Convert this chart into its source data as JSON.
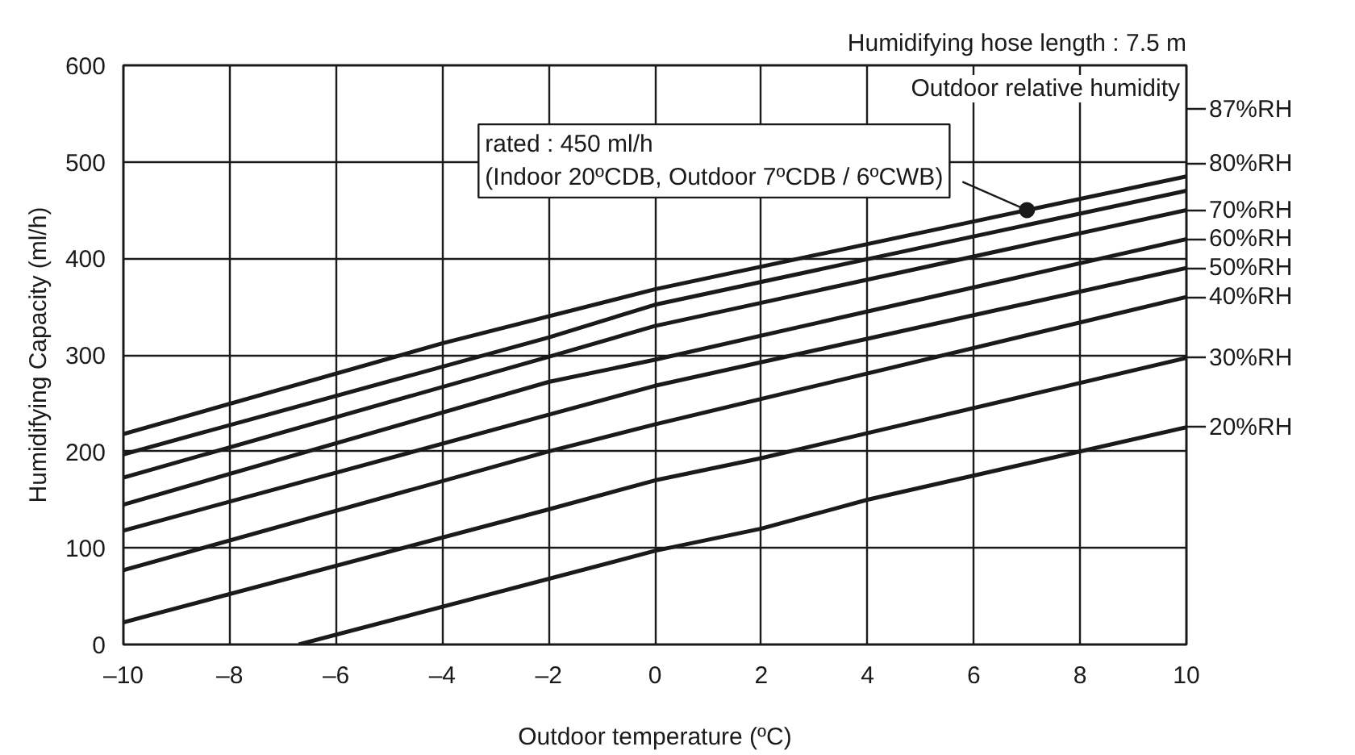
{
  "chart_data": {
    "type": "line",
    "title": "Humidifying hose length : 7.5 m",
    "xlabel": "Outdoor temperature (ºC)",
    "ylabel": "Humidifying Capacity (ml/h)",
    "legend_title": "Outdoor relative humidity",
    "xlim": [
      -10,
      10
    ],
    "ylim": [
      0,
      600
    ],
    "xticks": [
      {
        "value": -10,
        "label": "–10"
      },
      {
        "value": -8,
        "label": "–8"
      },
      {
        "value": -6,
        "label": "–6"
      },
      {
        "value": -4,
        "label": "–4"
      },
      {
        "value": -2,
        "label": "–2"
      },
      0,
      2,
      4,
      6,
      8,
      10
    ],
    "yticks": [
      0,
      100,
      200,
      300,
      400,
      500,
      600
    ],
    "grid": true,
    "legend": "right",
    "line_style": "solid",
    "series": [
      {
        "name": "87%RH",
        "color": "#1a1a1a",
        "x": [
          -10,
          -4,
          0,
          7,
          10
        ],
        "values": [
          218,
          312,
          368,
          450,
          485
        ]
      },
      {
        "name": "80%RH",
        "color": "#1a1a1a",
        "x": [
          -10,
          -2,
          0,
          10
        ],
        "values": [
          197,
          318,
          352,
          470
        ]
      },
      {
        "name": "70%RH",
        "color": "#1a1a1a",
        "x": [
          -10,
          -2,
          0,
          10
        ],
        "values": [
          173,
          298,
          330,
          450
        ]
      },
      {
        "name": "60%RH",
        "color": "#1a1a1a",
        "x": [
          -10,
          -2,
          0,
          10
        ],
        "values": [
          145,
          272,
          295,
          420
        ]
      },
      {
        "name": "50%RH",
        "color": "#1a1a1a",
        "x": [
          -10,
          -2,
          0,
          10
        ],
        "values": [
          118,
          238,
          268,
          390
        ]
      },
      {
        "name": "40%RH",
        "color": "#1a1a1a",
        "x": [
          -10,
          -2,
          0,
          10
        ],
        "values": [
          77,
          200,
          228,
          360
        ]
      },
      {
        "name": "30%RH",
        "color": "#1a1a1a",
        "x": [
          -10,
          -2,
          0,
          2,
          10
        ],
        "values": [
          23,
          140,
          170,
          193,
          297
        ]
      },
      {
        "name": "20%RH",
        "color": "#1a1a1a",
        "x": [
          -6.7,
          0,
          2,
          4,
          10
        ],
        "values": [
          0,
          97,
          120,
          150,
          225
        ]
      }
    ],
    "annotations": [
      {
        "text": "rated : 450 ml/h\n(Indoor 20ºCDB, Outdoor 7ºCDB / 6ºCWB)",
        "x": 7,
        "y": 450
      }
    ]
  }
}
